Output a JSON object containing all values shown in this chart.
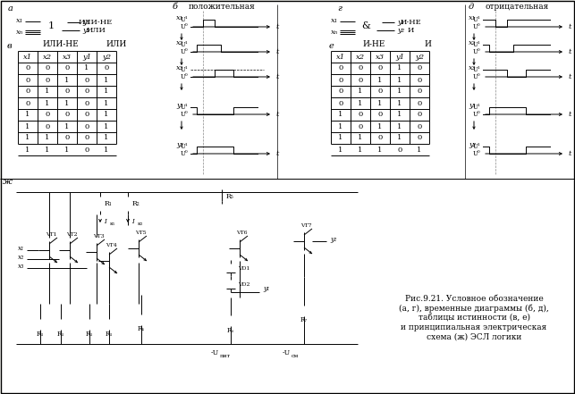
{
  "bg_color": "#f5f5f0",
  "truth_table_ili_ne": {
    "headers": [
      "x1",
      "x2",
      "x3",
      "y1",
      "y2"
    ],
    "rows": [
      [
        0,
        0,
        0,
        1,
        0
      ],
      [
        0,
        0,
        1,
        0,
        1
      ],
      [
        0,
        1,
        0,
        0,
        1
      ],
      [
        0,
        1,
        1,
        0,
        1
      ],
      [
        1,
        0,
        0,
        0,
        1
      ],
      [
        1,
        0,
        1,
        0,
        1
      ],
      [
        1,
        1,
        0,
        0,
        1
      ],
      [
        1,
        1,
        1,
        0,
        1
      ]
    ]
  },
  "truth_table_i_ne": {
    "headers": [
      "x1",
      "x2",
      "x3",
      "y1",
      "y2"
    ],
    "rows": [
      [
        0,
        0,
        0,
        1,
        0
      ],
      [
        0,
        0,
        1,
        1,
        0
      ],
      [
        0,
        1,
        0,
        1,
        0
      ],
      [
        0,
        1,
        1,
        1,
        0
      ],
      [
        1,
        0,
        0,
        1,
        0
      ],
      [
        1,
        0,
        1,
        1,
        0
      ],
      [
        1,
        1,
        0,
        1,
        0
      ],
      [
        1,
        1,
        1,
        0,
        1
      ]
    ]
  },
  "caption": "Рис.9.21. Условное обозначение\n(а, г), временные диаграммы (б, д),\nтаблицы истинности (в, е)\nи принципиальная электрическая\nсхема (ж) ЭСЛ логики"
}
